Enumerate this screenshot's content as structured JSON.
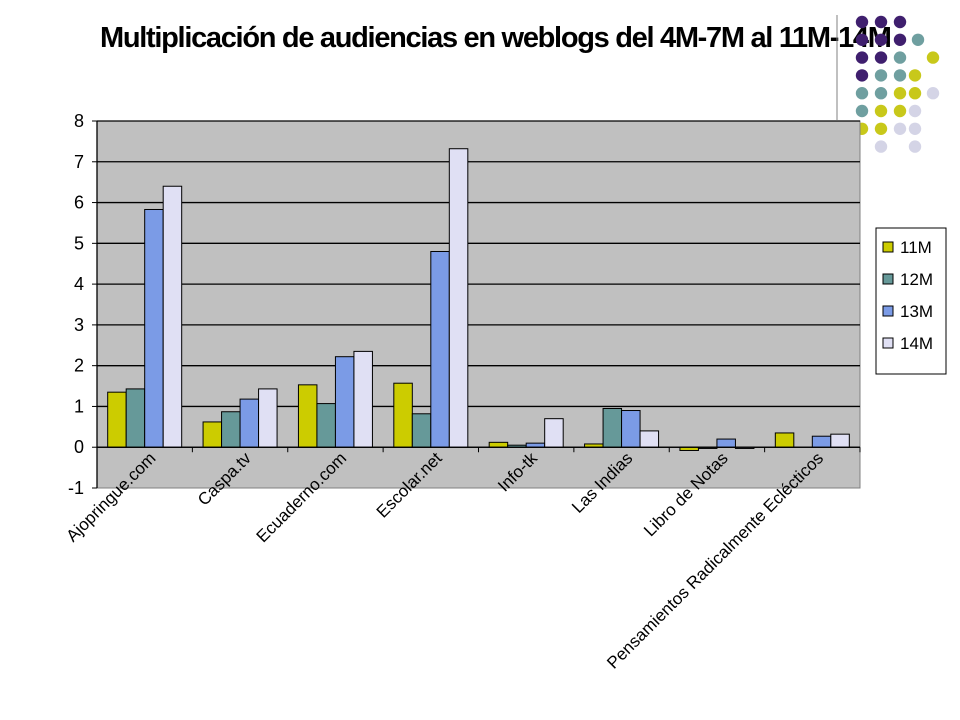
{
  "chart_data": {
    "type": "bar",
    "title": "Multiplicación de audiencias en weblogs del 4M-7M al 11M-14M",
    "categories": [
      "Ajopringue.com",
      "Caspa.tv",
      "Ecuaderno.com",
      "Escolar.net",
      "Info-tk",
      "Las Indias",
      "Libro de Notas",
      "Pensamientos Radicalmente Eclécticos"
    ],
    "series": [
      {
        "name": "11M",
        "values": [
          1.35,
          0.62,
          1.53,
          1.57,
          0.12,
          0.08,
          -0.08,
          0.35
        ]
      },
      {
        "name": "12M",
        "values": [
          1.43,
          0.87,
          1.07,
          0.82,
          0.05,
          0.95,
          -0.03,
          0.0
        ]
      },
      {
        "name": "13M",
        "values": [
          5.83,
          1.18,
          2.22,
          4.8,
          0.1,
          0.9,
          0.2,
          0.27
        ]
      },
      {
        "name": "14M",
        "values": [
          6.4,
          1.43,
          2.35,
          7.32,
          0.7,
          0.4,
          -0.03,
          0.32
        ]
      }
    ],
    "ylim": [
      -1,
      8
    ],
    "yticks": [
      "-1",
      "0",
      "1",
      "2",
      "3",
      "4",
      "5",
      "6",
      "7",
      "8"
    ],
    "grid": true,
    "legend_position": "right",
    "colors": {
      "plot_background": "#c0c0c0",
      "series": [
        "#cccc00",
        "#669999",
        "#7b9be6",
        "#e0e0f4"
      ],
      "grid": "#000000"
    },
    "xlabel": "",
    "ylabel": ""
  },
  "decoration": {
    "dot_colors": [
      "#3f1f6e",
      "#6f9fa0",
      "#c8c81a",
      "#d4d4e6"
    ]
  }
}
